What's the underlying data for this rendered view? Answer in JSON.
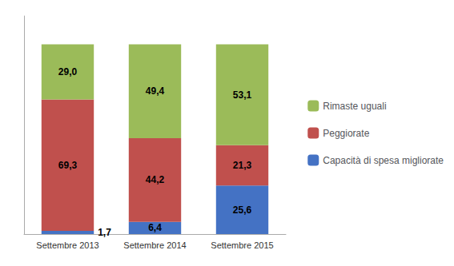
{
  "chart_data": {
    "type": "bar",
    "categories": [
      "Settembre 2013",
      "Settembre 2014",
      "Settembre 2015"
    ],
    "series": [
      {
        "name": "Capacità di spesa migliorate",
        "color": "#4472C4",
        "values": [
          1.7,
          6.4,
          25.6
        ],
        "value_labels": [
          "1,7",
          "6,4",
          "25,6"
        ]
      },
      {
        "name": "Peggiorate",
        "color": "#C0504D",
        "values": [
          69.3,
          44.2,
          21.3
        ],
        "value_labels": [
          "69,3",
          "44,2",
          "21,3"
        ]
      },
      {
        "name": "Rimaste uguali",
        "color": "#9BBB59",
        "values": [
          29.0,
          49.4,
          53.1
        ],
        "value_labels": [
          "29,0",
          "49,4",
          "53,1"
        ]
      }
    ],
    "stacked": true,
    "data_labels": true,
    "ylim": [
      0,
      115
    ],
    "tick_labels": "x",
    "grid": false,
    "legend": "right"
  }
}
